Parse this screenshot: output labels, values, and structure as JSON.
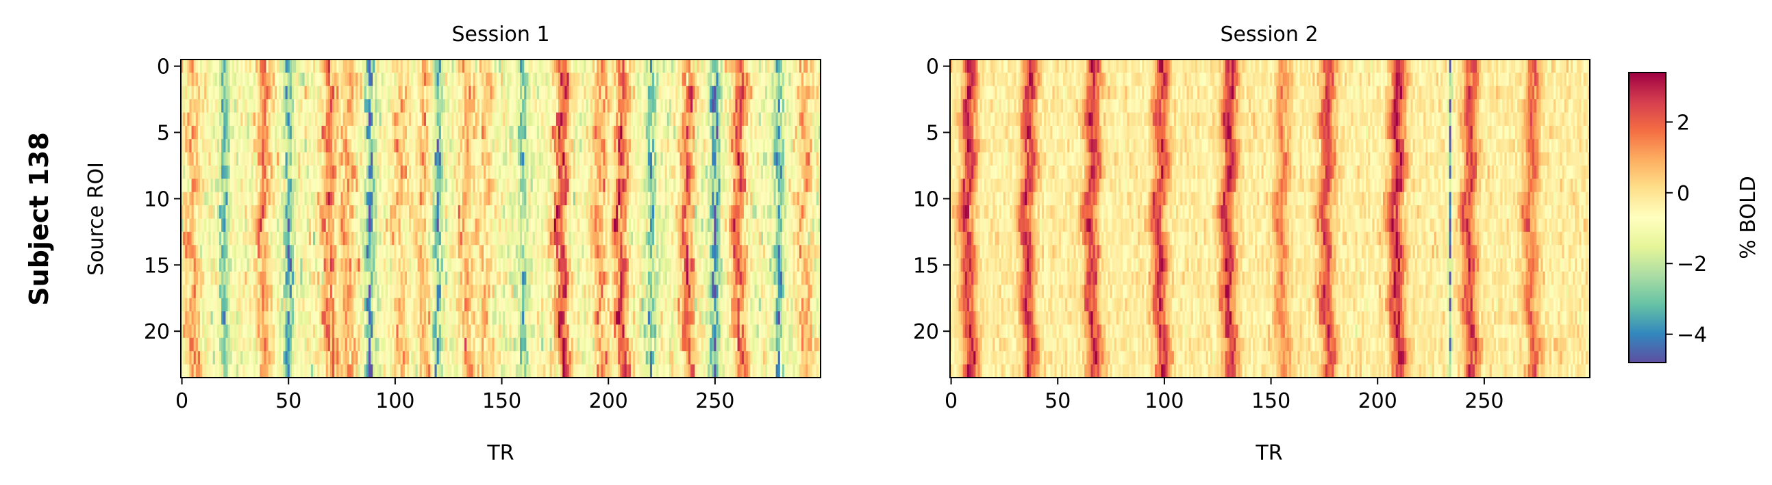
{
  "figure": {
    "row_label": "Subject 138"
  },
  "chart_data": [
    {
      "type": "heatmap",
      "title": "Session 1",
      "xlabel": "TR",
      "ylabel": "Source ROI",
      "n_rows": 24,
      "n_cols": 300,
      "xlim": [
        0,
        299
      ],
      "ylim": [
        0,
        23
      ],
      "xticks": [
        0,
        50,
        100,
        150,
        200,
        250
      ],
      "yticks": [
        0,
        5,
        10,
        15,
        20
      ],
      "y_inverted": true,
      "baseline_bold": -0.9,
      "peak_trs": [
        5,
        38,
        69,
        78,
        102,
        113,
        133,
        142,
        178,
        196,
        206,
        237,
        261,
        292
      ],
      "peak_amplitudes": [
        1.8,
        2.2,
        2.4,
        1.8,
        1.5,
        1.6,
        1.8,
        1.2,
        3.3,
        2.0,
        3.0,
        2.6,
        2.8,
        1.6
      ],
      "trough_trs": [
        20,
        50,
        88,
        120,
        160,
        220,
        250,
        280
      ],
      "trough_amplitudes": [
        -2.6,
        -2.8,
        -3.6,
        -3.2,
        -2.2,
        -2.6,
        -3.6,
        -2.8
      ],
      "peak_width_tr": 2.5,
      "noise_sd": 0.6
    },
    {
      "type": "heatmap",
      "title": "Session 2",
      "xlabel": "TR",
      "ylabel": "",
      "n_rows": 24,
      "n_cols": 300,
      "xlim": [
        0,
        299
      ],
      "ylim": [
        0,
        23
      ],
      "xticks": [
        0,
        50,
        100,
        150,
        200,
        250
      ],
      "yticks": [
        0,
        5,
        10,
        15,
        20
      ],
      "y_inverted": true,
      "baseline_bold": -0.25,
      "peak_trs": [
        8,
        36,
        66,
        98,
        130,
        155,
        176,
        209,
        243,
        272
      ],
      "peak_amplitudes": [
        2.9,
        2.9,
        2.9,
        2.8,
        3.0,
        1.6,
        2.6,
        3.2,
        2.7,
        2.0
      ],
      "trough_trs": [
        234
      ],
      "trough_amplitudes": [
        -4.6
      ],
      "peak_width_tr": 2.5,
      "noise_sd": 0.35
    }
  ],
  "colorbar": {
    "label": "% BOLD",
    "colormap": "Spectral_r",
    "vmin": -4.8,
    "vmax": 3.4,
    "ticks": [
      -4,
      -2,
      0,
      2
    ],
    "tick_labels": [
      "−4",
      "−2",
      "0",
      "2"
    ],
    "colors_low_to_high": [
      "#5e4fa2",
      "#3288bd",
      "#66c2a5",
      "#abdda4",
      "#e6f598",
      "#ffffbf",
      "#fee08b",
      "#fdae61",
      "#f46d43",
      "#d53e4f",
      "#9e0142"
    ]
  }
}
